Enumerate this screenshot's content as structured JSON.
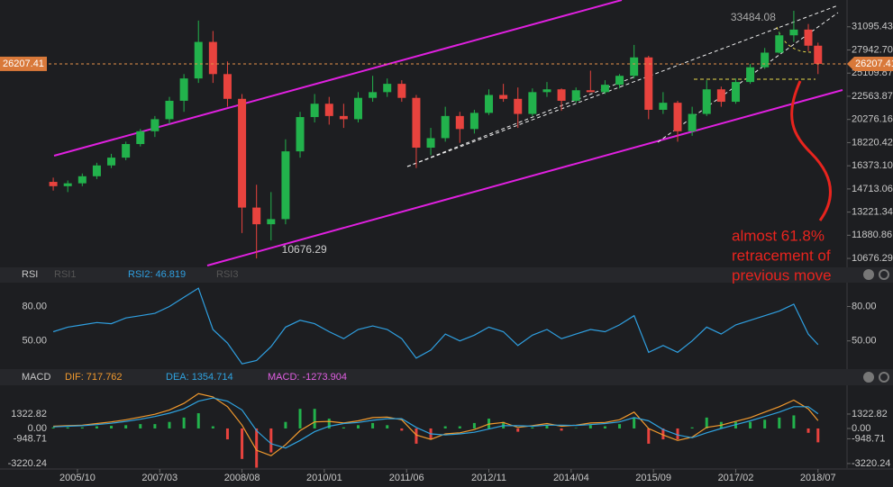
{
  "chart_data": [
    {
      "type": "candlestick",
      "x": [
        "2005/05",
        "2005/08",
        "2005/11",
        "2006/02",
        "2006/05",
        "2006/08",
        "2006/11",
        "2007/02",
        "2007/05",
        "2007/08",
        "2007/11",
        "2008/02",
        "2008/05",
        "2008/08",
        "2008/11",
        "2009/02",
        "2009/05",
        "2009/08",
        "2009/11",
        "2010/02",
        "2010/05",
        "2010/08",
        "2010/11",
        "2011/02",
        "2011/05",
        "2011/08",
        "2011/11",
        "2012/02",
        "2012/05",
        "2012/08",
        "2012/11",
        "2013/02",
        "2013/05",
        "2013/08",
        "2013/11",
        "2014/02",
        "2014/05",
        "2014/08",
        "2014/11",
        "2015/02",
        "2015/05",
        "2015/08",
        "2015/11",
        "2016/02",
        "2016/05",
        "2016/08",
        "2016/11",
        "2017/02",
        "2017/05",
        "2017/08",
        "2017/11",
        "2018/02",
        "2018/05",
        "2018/07"
      ],
      "open": [
        15200,
        14900,
        15100,
        15600,
        16400,
        17000,
        18100,
        19200,
        20300,
        22100,
        24500,
        29000,
        25000,
        22300,
        13500,
        12500,
        12800,
        17500,
        20500,
        21800,
        20600,
        20300,
        22400,
        23000,
        23900,
        22400,
        17800,
        18600,
        20600,
        19400,
        20900,
        22700,
        22300,
        20800,
        23000,
        23300,
        22100,
        23200,
        23000,
        23800,
        24800,
        27000,
        21200,
        21900,
        19200,
        20800,
        23300,
        22000,
        24100,
        25800,
        27600,
        29900,
        30700,
        28500
      ],
      "high": [
        15500,
        15300,
        15800,
        16600,
        17300,
        18300,
        19400,
        20600,
        22500,
        25000,
        32000,
        30500,
        26500,
        22800,
        15000,
        14500,
        18500,
        21000,
        22800,
        22500,
        21800,
        23000,
        24800,
        24500,
        24300,
        22700,
        19500,
        21500,
        21000,
        21200,
        23300,
        23900,
        23500,
        23400,
        24100,
        23400,
        23500,
        25400,
        24300,
        25000,
        28600,
        27200,
        23000,
        22100,
        21500,
        24300,
        23600,
        24500,
        26200,
        28200,
        30400,
        33484.08,
        31500,
        28900
      ],
      "low": [
        14600,
        14500,
        14900,
        15400,
        16200,
        16800,
        17900,
        18700,
        19800,
        21000,
        24000,
        24000,
        21500,
        12000,
        10676.29,
        11600,
        12500,
        17000,
        20000,
        19800,
        19500,
        20000,
        22000,
        22500,
        22000,
        16200,
        17200,
        18300,
        18200,
        19000,
        20700,
        22000,
        19500,
        20600,
        22500,
        21100,
        21900,
        23000,
        22800,
        23400,
        24500,
        20300,
        20800,
        18300,
        18800,
        20600,
        21500,
        21800,
        23900,
        25600,
        27500,
        29000,
        27800,
        25000
      ],
      "close": [
        14900,
        15100,
        15600,
        16400,
        17000,
        18100,
        19200,
        20300,
        22100,
        24500,
        29000,
        25000,
        22300,
        13500,
        12500,
        12800,
        17500,
        20500,
        21800,
        20600,
        20300,
        22400,
        23000,
        23900,
        22400,
        17800,
        18600,
        20600,
        19400,
        20900,
        22700,
        22300,
        20800,
        23000,
        23300,
        22100,
        23200,
        23000,
        23800,
        24800,
        27000,
        21200,
        21900,
        19200,
        20800,
        23300,
        22000,
        24100,
        25800,
        27600,
        29900,
        30700,
        28500,
        26207.41
      ],
      "colors": {
        "up": "#22b24c",
        "down": "#e8433e"
      },
      "xlim": [
        "2004/06",
        "2019/01"
      ],
      "ylim": [
        10330,
        34900
      ],
      "log_scale": true,
      "yticks": [
        10676.29,
        11880.86,
        13221.34,
        14713.06,
        {
          "value": 16373.1,
          "label": "16373.10"
        },
        18220.42,
        20276.16,
        22563.87,
        25109.87,
        {
          "value": 27942.7,
          "label": "27942.70"
        },
        31095.43
      ],
      "annotation": [
        "almost 61.8%",
        "retracement of",
        "previous move"
      ]
    },
    {
      "type": "line",
      "label": "RSI",
      "x": [
        "2005/05",
        "2005/08",
        "2005/11",
        "2006/02",
        "2006/05",
        "2006/08",
        "2006/11",
        "2007/02",
        "2007/05",
        "2007/08",
        "2007/11",
        "2008/02",
        "2008/05",
        "2008/08",
        "2008/11",
        "2009/02",
        "2009/05",
        "2009/08",
        "2009/11",
        "2010/02",
        "2010/05",
        "2010/08",
        "2010/11",
        "2011/02",
        "2011/05",
        "2011/08",
        "2011/11",
        "2012/02",
        "2012/05",
        "2012/08",
        "2012/11",
        "2013/02",
        "2013/05",
        "2013/08",
        "2013/11",
        "2014/02",
        "2014/05",
        "2014/08",
        "2014/11",
        "2015/02",
        "2015/05",
        "2015/08",
        "2015/11",
        "2016/02",
        "2016/05",
        "2016/08",
        "2016/11",
        "2017/02",
        "2017/05",
        "2017/08",
        "2017/11",
        "2018/02",
        "2018/05",
        "2018/07"
      ],
      "inactive_series": [
        "RSI1",
        "RSI3"
      ],
      "series": [
        {
          "name": "RSI2:",
          "color": "#2f9fe0",
          "values": [
            58,
            62,
            64,
            66,
            65,
            70,
            72,
            74,
            80,
            88,
            96,
            60,
            48,
            30,
            33,
            45,
            62,
            68,
            65,
            58,
            52,
            60,
            63,
            60,
            52,
            35,
            42,
            56,
            50,
            55,
            62,
            58,
            46,
            55,
            60,
            52,
            56,
            60,
            58,
            64,
            72,
            40,
            46,
            40,
            50,
            62,
            56,
            64,
            68,
            72,
            76,
            82,
            56,
            46.819
          ]
        }
      ],
      "xlim": [
        "2004/06",
        "2019/01"
      ],
      "ylim": [
        27,
        100
      ],
      "yticks": [
        {
          "value": 50,
          "label": "50.00"
        },
        {
          "value": 80,
          "label": "80.00"
        }
      ]
    },
    {
      "type": "macd",
      "label": "MACD",
      "x": [
        "2005/05",
        "2005/08",
        "2005/11",
        "2006/02",
        "2006/05",
        "2006/08",
        "2006/11",
        "2007/02",
        "2007/05",
        "2007/08",
        "2007/11",
        "2008/02",
        "2008/05",
        "2008/08",
        "2008/11",
        "2009/02",
        "2009/05",
        "2009/08",
        "2009/11",
        "2010/02",
        "2010/05",
        "2010/08",
        "2010/11",
        "2011/02",
        "2011/05",
        "2011/08",
        "2011/11",
        "2012/02",
        "2012/05",
        "2012/08",
        "2012/11",
        "2013/02",
        "2013/05",
        "2013/08",
        "2013/11",
        "2014/02",
        "2014/05",
        "2014/08",
        "2014/11",
        "2015/02",
        "2015/05",
        "2015/08",
        "2015/11",
        "2016/02",
        "2016/05",
        "2016/08",
        "2016/11",
        "2017/02",
        "2017/05",
        "2017/08",
        "2017/11",
        "2018/02",
        "2018/05",
        "2018/07"
      ],
      "series": [
        {
          "name": "DIF:",
          "color": "#f29a2e",
          "values": [
            200,
            250,
            300,
            450,
            600,
            800,
            1050,
            1300,
            1700,
            2300,
            3200,
            2900,
            2000,
            300,
            -2000,
            -2500,
            -1500,
            -200,
            600,
            650,
            500,
            700,
            1000,
            1050,
            800,
            -600,
            -1000,
            -500,
            -400,
            -100,
            400,
            550,
            100,
            250,
            450,
            200,
            300,
            500,
            550,
            800,
            1500,
            0,
            -600,
            -1100,
            -800,
            100,
            300,
            650,
            1000,
            1500,
            2000,
            2600,
            1800,
            717.762
          ]
        },
        {
          "name": "DEA:",
          "color": "#2fa3e0",
          "values": [
            150,
            200,
            250,
            350,
            480,
            650,
            850,
            1100,
            1400,
            1800,
            2500,
            2800,
            2500,
            1700,
            -200,
            -1400,
            -1800,
            -1100,
            -300,
            200,
            450,
            550,
            750,
            900,
            900,
            100,
            -500,
            -600,
            -500,
            -350,
            -50,
            250,
            250,
            200,
            300,
            300,
            280,
            350,
            450,
            600,
            1000,
            700,
            -100,
            -600,
            -850,
            -400,
            0,
            350,
            700,
            1100,
            1500,
            2000,
            2000,
            1354.714
          ]
        },
        {
          "name": "MACD:",
          "color": "#e15fe3",
          "values": [
            100,
            100,
            100,
            200,
            240,
            300,
            400,
            400,
            600,
            1000,
            1400,
            200,
            -1000,
            -2800,
            -3600,
            -2200,
            600,
            1800,
            1800,
            900,
            100,
            300,
            500,
            300,
            -200,
            -1400,
            -1000,
            200,
            200,
            500,
            900,
            600,
            -300,
            100,
            300,
            -200,
            40,
            300,
            200,
            400,
            1000,
            -1400,
            -1000,
            -1000,
            100,
            1000,
            600,
            600,
            600,
            800,
            1000,
            1200,
            -400,
            -1273.904
          ]
        }
      ],
      "bar_colors": {
        "up": "#22b24c",
        "down": "#e8433e"
      },
      "xlim": [
        "2004/06",
        "2019/01"
      ],
      "ylim": [
        -3640,
        3800
      ],
      "yticks": [
        -3220.24,
        -948.71,
        {
          "value": 0,
          "label": "0.00"
        },
        1322.82
      ],
      "xticks": [
        "2005/10",
        "2007/03",
        "2008/08",
        "2010/01",
        "2011/06",
        "2012/11",
        "2014/04",
        "2015/09",
        "2017/02",
        "2018/07"
      ]
    }
  ]
}
